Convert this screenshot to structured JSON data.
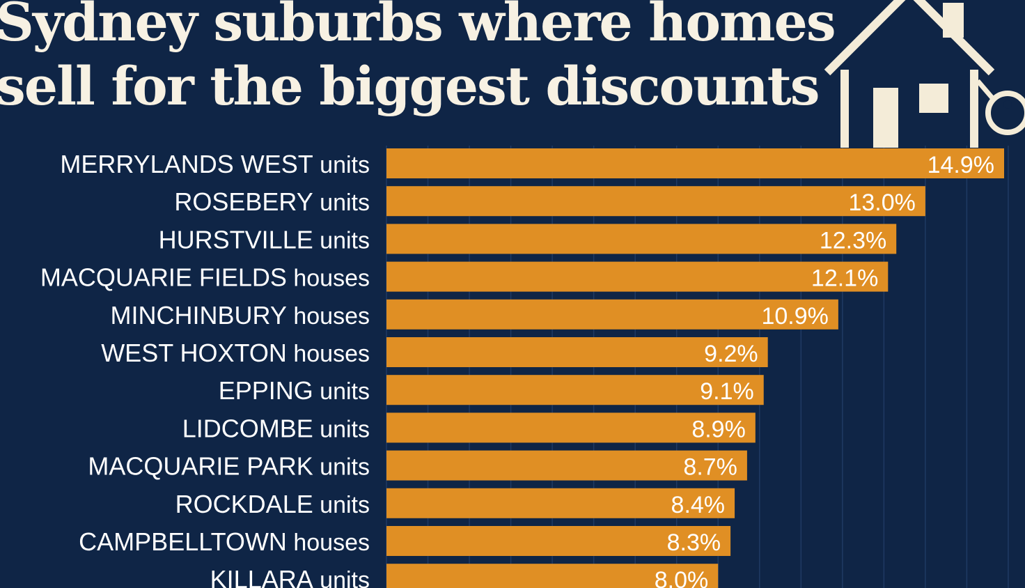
{
  "colors": {
    "background": "#0f2546",
    "bar": "#e08f24",
    "text": "#ffffff",
    "title": "#f7f1e3",
    "icon": "#f4ecd8",
    "grid": "#1f3a63"
  },
  "icon": {
    "name": "house-with-key-icon"
  },
  "chart_data": {
    "type": "bar",
    "orientation": "horizontal",
    "title_lines": [
      "Sydney suburbs where homes",
      "sell for the biggest discounts"
    ],
    "categories": [
      {
        "suburb": "MERRYLANDS WEST",
        "type": "units"
      },
      {
        "suburb": "ROSEBERY",
        "type": "units"
      },
      {
        "suburb": "HURSTVILLE",
        "type": "units"
      },
      {
        "suburb": "MACQUARIE FIELDS",
        "type": "houses"
      },
      {
        "suburb": "MINCHINBURY",
        "type": "houses"
      },
      {
        "suburb": "WEST HOXTON",
        "type": "houses"
      },
      {
        "suburb": "EPPING",
        "type": "units"
      },
      {
        "suburb": "LIDCOMBE",
        "type": "units"
      },
      {
        "suburb": "MACQUARIE PARK",
        "type": "units"
      },
      {
        "suburb": "ROCKDALE",
        "type": "units"
      },
      {
        "suburb": "CAMPBELLTOWN",
        "type": "houses"
      },
      {
        "suburb": "KILLARA",
        "type": "units"
      }
    ],
    "values": [
      14.9,
      13.0,
      12.3,
      12.1,
      10.9,
      9.2,
      9.1,
      8.9,
      8.7,
      8.4,
      8.3,
      8.0
    ],
    "value_labels": [
      "14.9%",
      "13.0%",
      "12.3%",
      "12.1%",
      "10.9%",
      "9.2%",
      "9.1%",
      "8.9%",
      "8.7%",
      "8.4%",
      "8.3%",
      "8.0%"
    ],
    "unit": "%",
    "xlim": [
      0,
      15
    ],
    "grid": true,
    "legend": "none"
  }
}
